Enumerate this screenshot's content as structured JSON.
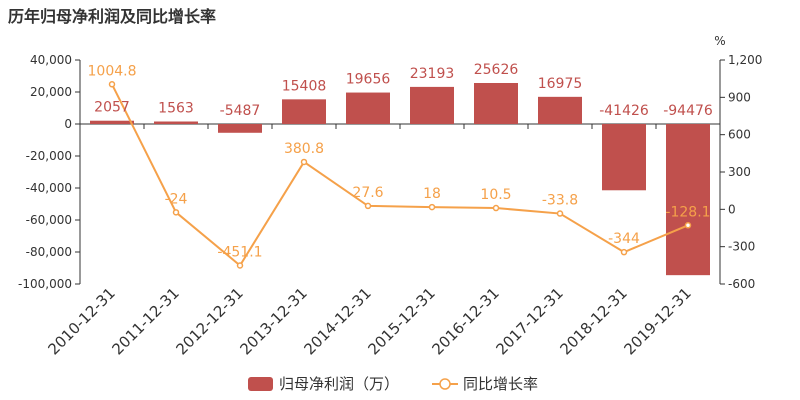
{
  "colors": {
    "bar": "#c0504d",
    "line": "#f5a14a",
    "text": "#333333",
    "axis": "#333333"
  },
  "chart_data": {
    "type": "bar",
    "title": "历年归母净利润及同比增长率",
    "categories": [
      "2010-12-31",
      "2011-12-31",
      "2012-12-31",
      "2013-12-31",
      "2014-12-31",
      "2015-12-31",
      "2016-12-31",
      "2017-12-31",
      "2018-12-31",
      "2019-12-31"
    ],
    "series": [
      {
        "name": "归母净利润（万）",
        "kind": "bar",
        "axis": "left",
        "values": [
          2057,
          1563,
          -5487,
          15408,
          19656,
          23193,
          25626,
          16975,
          -41426,
          -94476
        ]
      },
      {
        "name": "同比增长率",
        "kind": "line",
        "axis": "right",
        "values": [
          1004.8,
          -24,
          -451.1,
          380.8,
          27.6,
          18,
          10.5,
          -33.8,
          -344,
          -128.1
        ]
      }
    ],
    "left_axis": {
      "min": -100000,
      "max": 40000,
      "ticks": [
        "40,000",
        "20,000",
        "0",
        "-20,000",
        "-40,000",
        "-60,000",
        "-80,000",
        "-100,000"
      ]
    },
    "right_axis": {
      "min": -600,
      "max": 1200,
      "unit": "%",
      "ticks": [
        "1,200",
        "900",
        "600",
        "300",
        "0",
        "-300",
        "-600"
      ]
    },
    "legend_position": "bottom-center",
    "grid": false
  }
}
